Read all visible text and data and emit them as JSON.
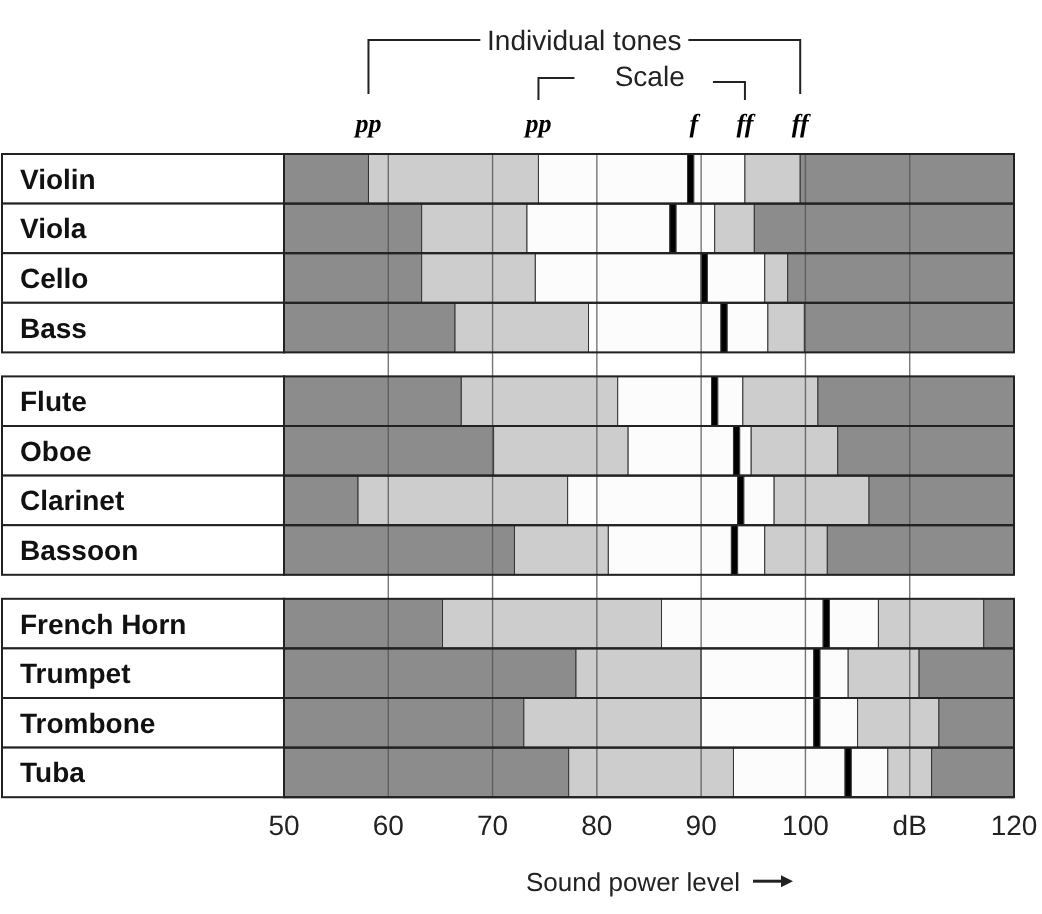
{
  "chart_data": {
    "type": "bar",
    "orientation": "horizontal",
    "grid": "x",
    "xlabel": "Sound power level",
    "categories": [
      "Violin",
      "Viola",
      "Cello",
      "Bass",
      null,
      "Flute",
      "Oboe",
      "Clarinet",
      "Bassoon",
      null,
      "French Horn",
      "Trumpet",
      "Trombone",
      "Tuba"
    ],
    "xlim": [
      50,
      120
    ],
    "xticks": [
      50,
      60,
      70,
      80,
      90,
      100,
      {
        "value": 110,
        "label": "dB"
      },
      120
    ],
    "annotations": [
      "Individual tones",
      "Scale",
      "pp",
      "pp",
      "f",
      "ff",
      "ff"
    ],
    "series": [
      {
        "color": "#8c8c8c",
        "base": [
          50,
          50,
          50,
          50,
          null,
          50,
          50,
          50,
          50,
          null,
          50,
          50,
          50,
          50
        ],
        "values": [
          8.1,
          13.2,
          13.2,
          16.4,
          null,
          17,
          20.1,
          7.1,
          22.1,
          null,
          15.2,
          28,
          23,
          27.3
        ]
      },
      {
        "color": "#cdcdcd",
        "base": [
          58.1,
          63.2,
          63.2,
          66.4,
          null,
          67,
          70.1,
          57.1,
          72.1,
          null,
          65.2,
          78,
          73,
          77.3
        ],
        "values": [
          16.3,
          10.1,
          10.9,
          12.8,
          null,
          15,
          12.9,
          20.1,
          9,
          null,
          21,
          12,
          17,
          15.8
        ]
      },
      {
        "color": "#fcfcfc",
        "base": [
          74.4,
          73.3,
          74.1,
          79.2,
          null,
          82,
          83,
          77.2,
          81.1,
          null,
          86.2,
          90,
          90,
          93.1
        ],
        "values": [
          14.3,
          13.7,
          15.9,
          12.7,
          null,
          9,
          10.1,
          16.3,
          11.8,
          null,
          15.5,
          10.8,
          10.8,
          10.7
        ]
      },
      {
        "color": "#000000",
        "base": [
          88.7,
          87,
          90,
          91.9,
          null,
          91,
          93.1,
          93.5,
          92.9,
          null,
          101.7,
          100.8,
          100.8,
          103.8
        ],
        "values": [
          0.6,
          0.6,
          0.6,
          0.6,
          null,
          0.6,
          0.6,
          0.6,
          0.6,
          null,
          0.6,
          0.6,
          0.6,
          0.6
        ]
      },
      {
        "color": "#fcfcfc",
        "base": [
          89.3,
          87.6,
          90.6,
          92.5,
          null,
          91.6,
          93.7,
          94.1,
          93.5,
          null,
          102.3,
          101.4,
          101.4,
          104.4
        ],
        "values": [
          4.9,
          3.7,
          5.5,
          3.9,
          null,
          2.4,
          1.1,
          2.9,
          2.6,
          null,
          4.7,
          2.7,
          3.6,
          3.5
        ]
      },
      {
        "color": "#cdcdcd",
        "base": [
          94.2,
          91.3,
          96.1,
          96.4,
          null,
          94,
          94.8,
          97,
          96.1,
          null,
          107,
          104.1,
          105,
          107.9
        ],
        "values": [
          5.3,
          3.8,
          2.2,
          3.5,
          null,
          7.2,
          8.3,
          9.1,
          6,
          null,
          10.1,
          6.8,
          7.8,
          4.2
        ]
      },
      {
        "color": "#8c8c8c",
        "base": [
          99.5,
          95.1,
          98.3,
          99.9,
          null,
          101.2,
          103.1,
          106.1,
          102.1,
          null,
          117.1,
          110.9,
          112.8,
          112.1
        ],
        "values": [
          20.5,
          24.9,
          21.7,
          20.1,
          null,
          18.8,
          16.9,
          13.9,
          17.9,
          null,
          2.9,
          9.1,
          7.2,
          7.9
        ]
      }
    ]
  }
}
